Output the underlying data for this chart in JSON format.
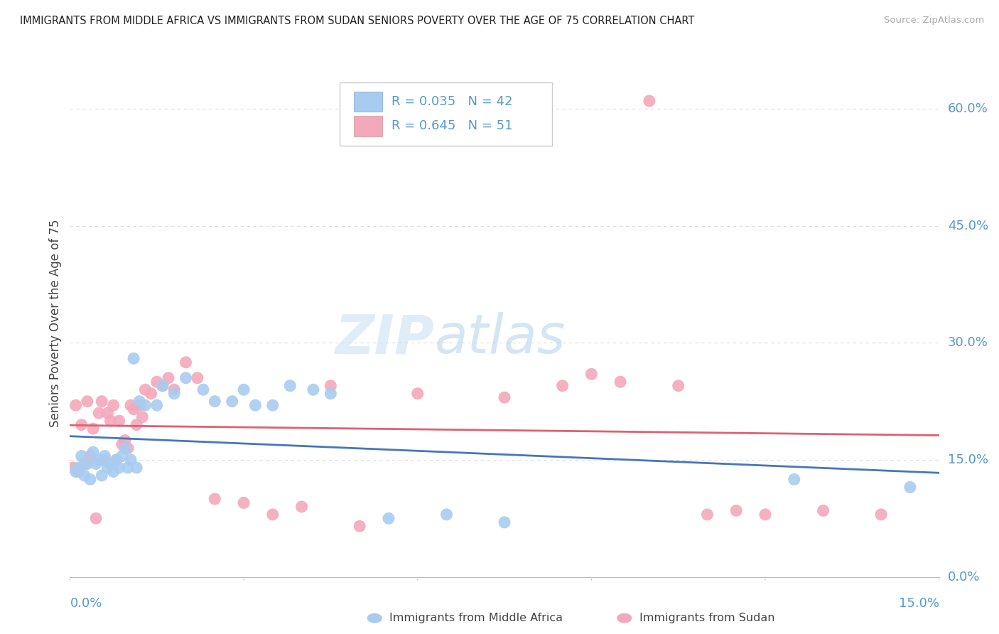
{
  "title": "IMMIGRANTS FROM MIDDLE AFRICA VS IMMIGRANTS FROM SUDAN SENIORS POVERTY OVER THE AGE OF 75 CORRELATION CHART",
  "source": "Source: ZipAtlas.com",
  "ylabel": "Seniors Poverty Over the Age of 75",
  "xlim": [
    0.0,
    15.0
  ],
  "ylim": [
    0.0,
    65.0
  ],
  "ytick_values": [
    0.0,
    15.0,
    30.0,
    45.0,
    60.0
  ],
  "watermark_part1": "ZIP",
  "watermark_part2": "atlas",
  "legend_R1": "R = 0.035",
  "legend_N1": "N = 42",
  "legend_R2": "R = 0.645",
  "legend_N2": "N = 51",
  "blue_color": "#a8ccf0",
  "pink_color": "#f4a8bb",
  "blue_line_color": "#4477bb",
  "pink_line_color": "#e06070",
  "title_color": "#222222",
  "source_color": "#aaaaaa",
  "label_color": "#5599cc",
  "grid_color": "#dddddd",
  "background_color": "#ffffff",
  "blue_scatter_x": [
    0.1,
    0.15,
    0.2,
    0.25,
    0.3,
    0.35,
    0.4,
    0.45,
    0.5,
    0.55,
    0.6,
    0.65,
    0.7,
    0.75,
    0.8,
    0.85,
    0.9,
    0.95,
    1.0,
    1.05,
    1.1,
    1.15,
    1.2,
    1.3,
    1.5,
    1.6,
    1.8,
    2.0,
    2.3,
    2.5,
    2.8,
    3.0,
    3.2,
    3.5,
    3.8,
    4.2,
    4.5,
    5.5,
    6.5,
    7.5,
    12.5,
    14.5
  ],
  "blue_scatter_y": [
    13.5,
    14.0,
    15.5,
    13.0,
    14.5,
    12.5,
    16.0,
    14.5,
    15.0,
    13.0,
    15.5,
    14.0,
    14.5,
    13.5,
    15.0,
    14.0,
    15.5,
    16.5,
    14.0,
    15.0,
    28.0,
    14.0,
    22.5,
    22.0,
    22.0,
    24.5,
    23.5,
    25.5,
    24.0,
    22.5,
    22.5,
    24.0,
    22.0,
    22.0,
    24.5,
    24.0,
    23.5,
    7.5,
    8.0,
    7.0,
    12.5,
    11.5
  ],
  "pink_scatter_x": [
    0.05,
    0.1,
    0.15,
    0.2,
    0.25,
    0.3,
    0.35,
    0.4,
    0.45,
    0.5,
    0.55,
    0.6,
    0.65,
    0.7,
    0.75,
    0.8,
    0.85,
    0.9,
    0.95,
    1.0,
    1.05,
    1.1,
    1.15,
    1.2,
    1.25,
    1.3,
    1.4,
    1.5,
    1.6,
    1.7,
    1.8,
    2.0,
    2.2,
    2.5,
    3.0,
    3.5,
    4.0,
    4.5,
    5.0,
    6.0,
    7.5,
    8.5,
    9.0,
    9.5,
    10.0,
    10.5,
    11.0,
    11.5,
    12.0,
    13.0,
    14.0
  ],
  "pink_scatter_y": [
    14.0,
    22.0,
    13.5,
    19.5,
    14.5,
    22.5,
    15.5,
    19.0,
    7.5,
    21.0,
    22.5,
    15.0,
    21.0,
    20.0,
    22.0,
    15.0,
    20.0,
    17.0,
    17.5,
    16.5,
    22.0,
    21.5,
    19.5,
    22.0,
    20.5,
    24.0,
    23.5,
    25.0,
    24.5,
    25.5,
    24.0,
    27.5,
    25.5,
    10.0,
    9.5,
    8.0,
    9.0,
    24.5,
    6.5,
    23.5,
    23.0,
    24.5,
    26.0,
    25.0,
    61.0,
    24.5,
    8.0,
    8.5,
    8.0,
    8.5,
    8.0
  ]
}
